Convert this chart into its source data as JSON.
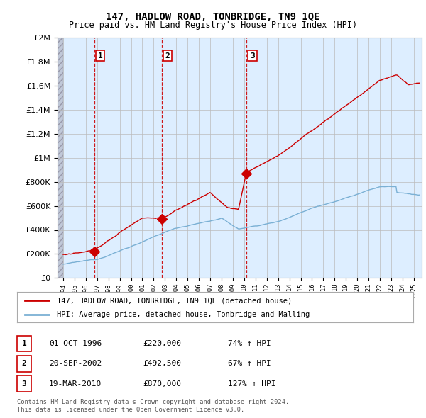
{
  "title": "147, HADLOW ROAD, TONBRIDGE, TN9 1QE",
  "subtitle": "Price paid vs. HM Land Registry's House Price Index (HPI)",
  "legend_line1": "147, HADLOW ROAD, TONBRIDGE, TN9 1QE (detached house)",
  "legend_line2": "HPI: Average price, detached house, Tonbridge and Malling",
  "sales": [
    {
      "num": 1,
      "date": "01-OCT-1996",
      "year": 1996.75,
      "price": 220000,
      "pct": "74%",
      "dir": "↑"
    },
    {
      "num": 2,
      "date": "20-SEP-2002",
      "year": 2002.72,
      "price": 492500,
      "pct": "67%",
      "dir": "↑"
    },
    {
      "num": 3,
      "date": "19-MAR-2010",
      "year": 2010.21,
      "price": 870000,
      "pct": "127%",
      "dir": "↑"
    }
  ],
  "footer_line1": "Contains HM Land Registry data © Crown copyright and database right 2024.",
  "footer_line2": "This data is licensed under the Open Government Licence v3.0.",
  "ylim": [
    0,
    2000000
  ],
  "xlim_start": 1993.5,
  "xlim_end": 2025.7,
  "red_color": "#cc0000",
  "blue_color": "#7ab0d4",
  "dashed_color": "#cc0000",
  "grid_color": "#bbbbbb",
  "bg_color": "#ffffff",
  "chart_bg": "#ddeeff",
  "hatch_color": "#c0c8d8",
  "table_border_color": "#cc0000"
}
